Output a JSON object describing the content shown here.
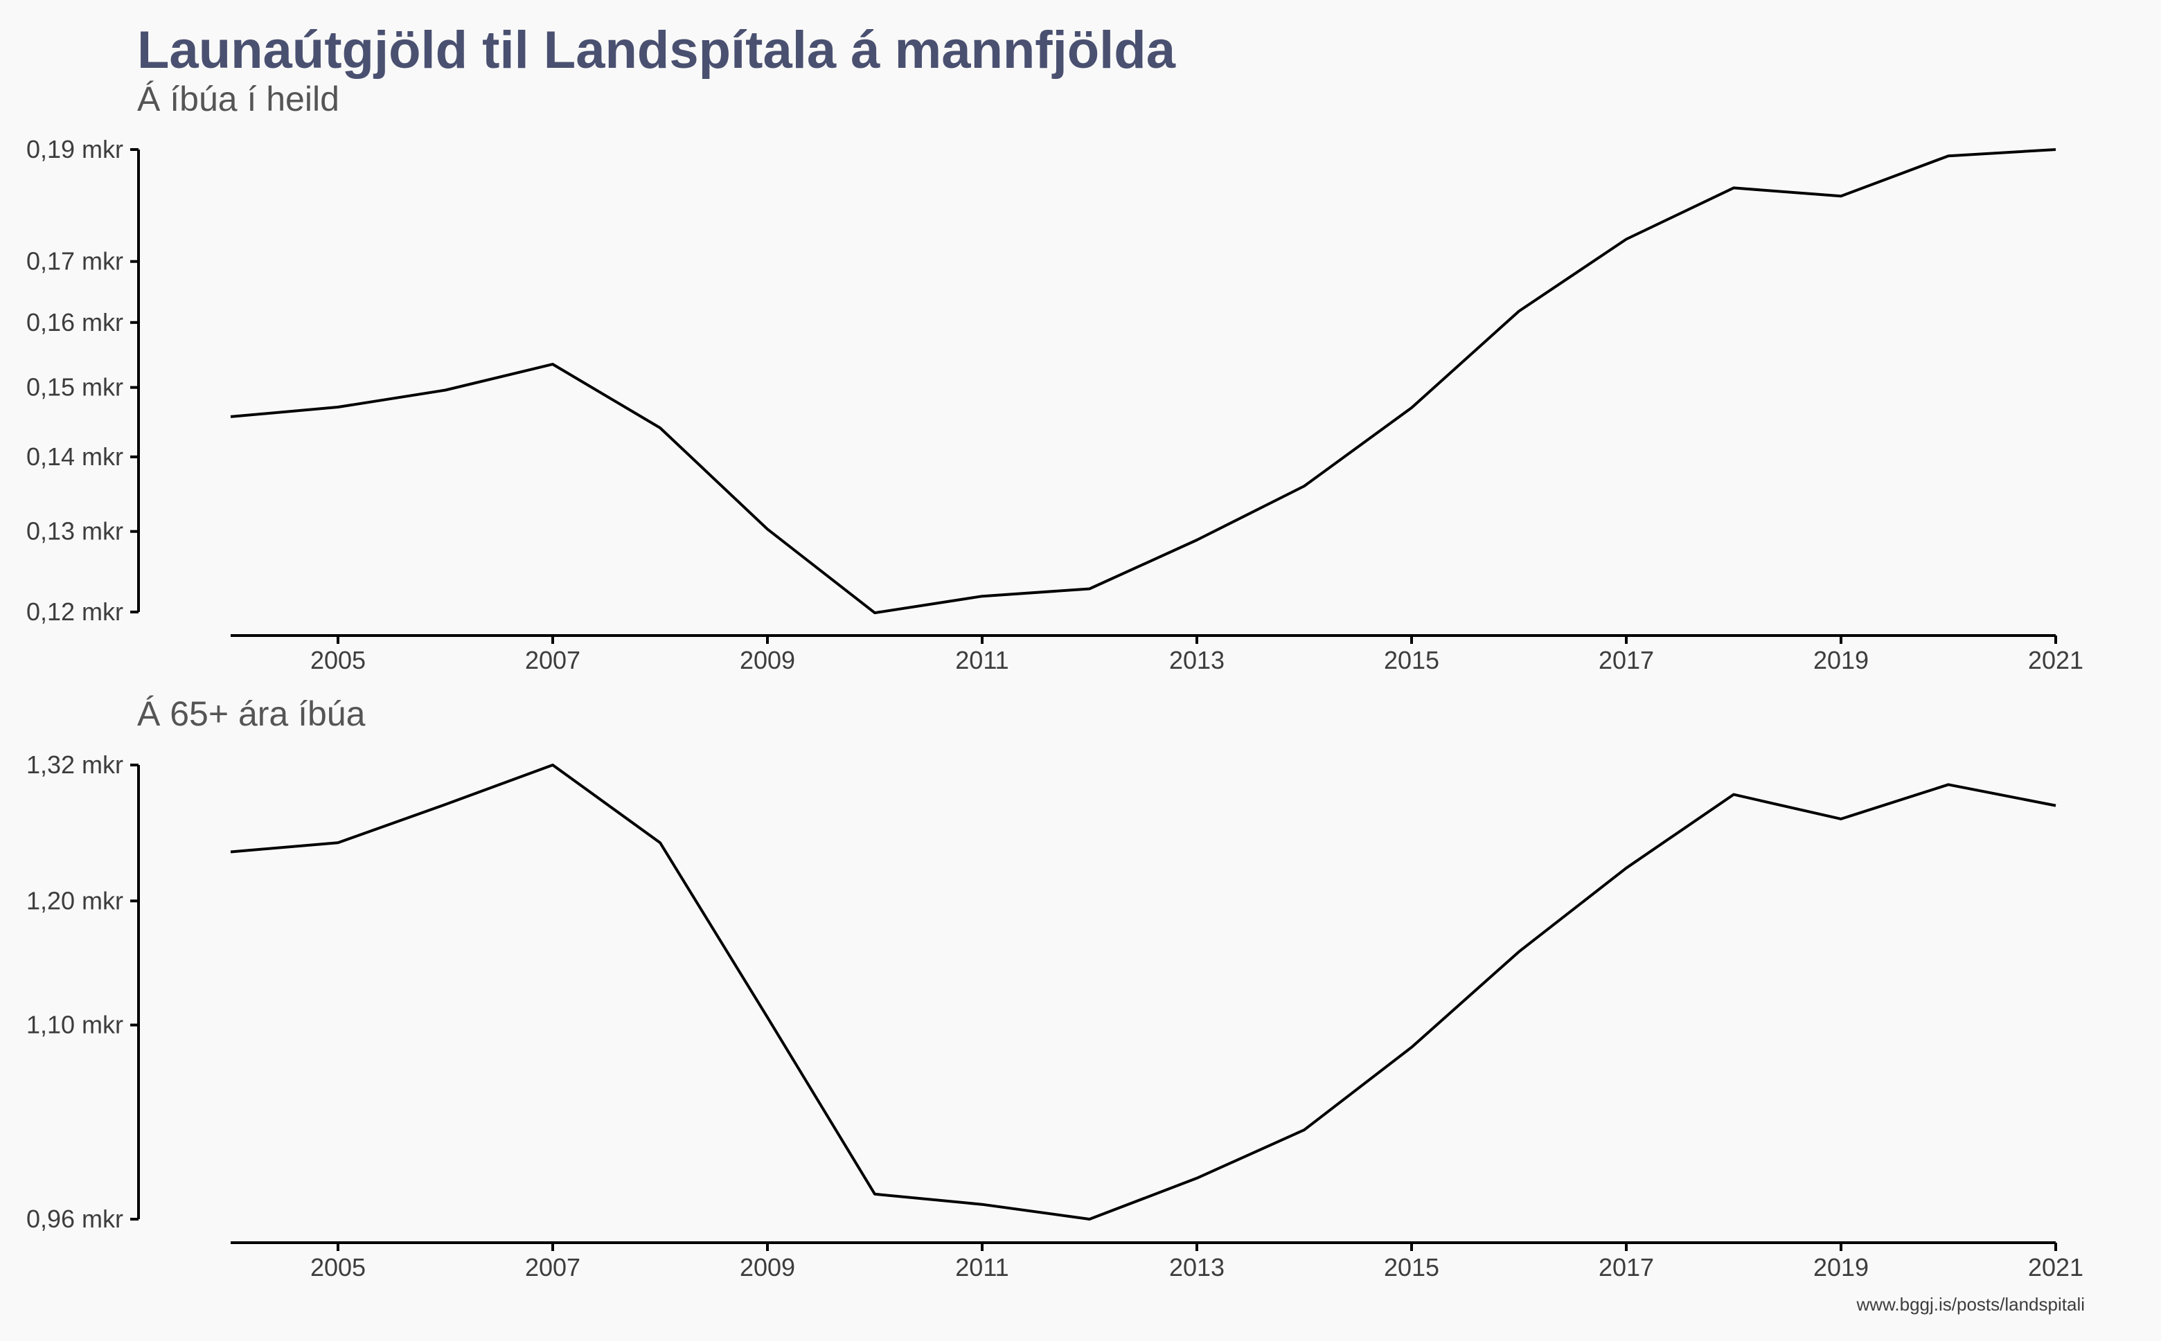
{
  "chart_data": [
    {
      "type": "line",
      "title": "Launaútgjöld til Landspítala á mannfjölda",
      "subtitle": "Á íbúa í heild",
      "x": [
        2004,
        2005,
        2006,
        2007,
        2008,
        2009,
        2010,
        2011,
        2012,
        2013,
        2014,
        2015,
        2016,
        2017,
        2018,
        2019,
        2020,
        2021
      ],
      "series": [
        {
          "values": [
            0.1457,
            0.1471,
            0.1496,
            0.1535,
            0.1441,
            0.1303,
            0.1199,
            0.1219,
            0.1228,
            0.1289,
            0.136,
            0.147,
            0.1618,
            0.1738,
            0.1829,
            0.1814,
            0.1888,
            0.19
          ]
        }
      ],
      "x_ticks": [
        2005,
        2007,
        2009,
        2011,
        2013,
        2015,
        2017,
        2019,
        2021
      ],
      "x_tick_labels": [
        "2005",
        "2007",
        "2009",
        "2011",
        "2013",
        "2015",
        "2017",
        "2019",
        "2021"
      ],
      "y_ticks": [
        0.12,
        0.13,
        0.14,
        0.15,
        0.16,
        0.17,
        0.19
      ],
      "y_tick_labels": [
        "0,12 mkr",
        "0,13 mkr",
        "0,14 mkr",
        "0,15 mkr",
        "0,16 mkr",
        "0,17 mkr",
        "0,19 mkr"
      ],
      "xlim": [
        2004,
        2021
      ],
      "ylim": [
        0.12,
        0.19
      ],
      "y_scale": "log",
      "grid": false,
      "line_color": "#000000"
    },
    {
      "type": "line",
      "subtitle": "Á 65+ ára íbúa",
      "x": [
        2004,
        2005,
        2006,
        2007,
        2008,
        2009,
        2010,
        2011,
        2012,
        2013,
        2014,
        2015,
        2016,
        2017,
        2018,
        2019,
        2020,
        2021
      ],
      "series": [
        {
          "values": [
            1.242,
            1.25,
            1.284,
            1.32,
            1.25,
            1.106,
            0.977,
            0.97,
            0.96,
            0.988,
            1.022,
            1.083,
            1.158,
            1.228,
            1.293,
            1.271,
            1.302,
            1.283
          ]
        }
      ],
      "x_ticks": [
        2005,
        2007,
        2009,
        2011,
        2013,
        2015,
        2017,
        2019,
        2021
      ],
      "x_tick_labels": [
        "2005",
        "2007",
        "2009",
        "2011",
        "2013",
        "2015",
        "2017",
        "2019",
        "2021"
      ],
      "y_ticks": [
        0.96,
        1.1,
        1.2,
        1.32
      ],
      "y_tick_labels": [
        "0,96 mkr",
        "1,10 mkr",
        "1,20 mkr",
        "1,32 mkr"
      ],
      "xlim": [
        2004,
        2021
      ],
      "ylim": [
        0.96,
        1.32
      ],
      "y_scale": "log",
      "grid": false,
      "line_color": "#000000"
    }
  ],
  "caption": "www.bggj.is/posts/landspitali",
  "colors": {
    "background": "#f9f9f9",
    "title": "#4a5070",
    "subtitle": "#555555",
    "text": "#3d3d3d"
  }
}
